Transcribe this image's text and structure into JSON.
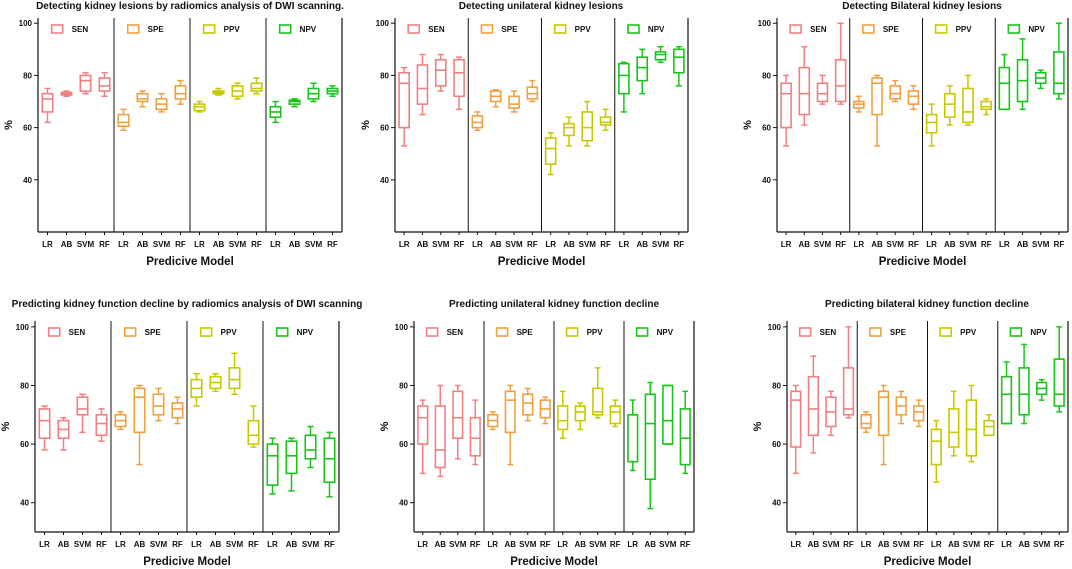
{
  "colors": {
    "SEN": "#f08080",
    "SPE": "#f0a040",
    "PPV": "#c8c800",
    "NPV": "#19c419",
    "axis": "#111111"
  },
  "chart_data": [
    {
      "type": "boxplot",
      "title": "Detecting kidney lesions by radiomics analysis of DWI scanning.",
      "xlabel": "Predicive Model",
      "ylabel": "%",
      "ylim": [
        20,
        102
      ],
      "yticks": [
        40,
        60,
        80,
        100
      ],
      "models": [
        "LR",
        "AB",
        "SVM",
        "RF"
      ],
      "groups": [
        {
          "name": "SEN",
          "boxes": [
            [
              62,
              66,
              71,
              73,
              75
            ],
            [
              72,
              72.5,
              73,
              73.5,
              74
            ],
            [
              73,
              74,
              78,
              80,
              81
            ],
            [
              72,
              74,
              76,
              79,
              81
            ]
          ]
        },
        {
          "name": "SPE",
          "boxes": [
            [
              59,
              60.5,
              62,
              65,
              67
            ],
            [
              68,
              70,
              71,
              73,
              74
            ],
            [
              66,
              67,
              69,
              71,
              73
            ],
            [
              69,
              71,
              73,
              76,
              78
            ]
          ]
        },
        {
          "name": "PPV",
          "boxes": [
            [
              66,
              66.5,
              68,
              69,
              70
            ],
            [
              72.5,
              73,
              73.5,
              74,
              75
            ],
            [
              71,
              72,
              74,
              76,
              77
            ],
            [
              73,
              74,
              75,
              77,
              79
            ]
          ]
        },
        {
          "name": "NPV",
          "boxes": [
            [
              62,
              64,
              66,
              68,
              70
            ],
            [
              68,
              69,
              70,
              70.5,
              71
            ],
            [
              70,
              71,
              73,
              75,
              77
            ],
            [
              72,
              73,
              74,
              75,
              76
            ]
          ]
        }
      ]
    },
    {
      "type": "boxplot",
      "title": "Detecting  unilateral kidney lesions",
      "xlabel": "Predicive Model",
      "ylabel": "%",
      "ylim": [
        20,
        102
      ],
      "yticks": [
        40,
        60,
        80,
        100
      ],
      "models": [
        "LR",
        "AB",
        "SVM",
        "RF"
      ],
      "groups": [
        {
          "name": "SEN",
          "boxes": [
            [
              53,
              60,
              77,
              81,
              83
            ],
            [
              65,
              69,
              75,
              84,
              88
            ],
            [
              74,
              76,
              82,
              86,
              88
            ],
            [
              67,
              72,
              81,
              86,
              87
            ]
          ]
        },
        {
          "name": "SPE",
          "boxes": [
            [
              59,
              60,
              62,
              64.5,
              66
            ],
            [
              68,
              70,
              72,
              74,
              74.5
            ],
            [
              66,
              67.5,
              69,
              72,
              74
            ],
            [
              70,
              71,
              73,
              75.5,
              78
            ]
          ]
        },
        {
          "name": "PPV",
          "boxes": [
            [
              42,
              46,
              52,
              56,
              58
            ],
            [
              53,
              57,
              60,
              61.5,
              64
            ],
            [
              53,
              55,
              60,
              66,
              70
            ],
            [
              59,
              61,
              62,
              64,
              67
            ]
          ]
        },
        {
          "name": "NPV",
          "boxes": [
            [
              66,
              73,
              80,
              84.5,
              85
            ],
            [
              73,
              78,
              83,
              87,
              90
            ],
            [
              85,
              86,
              88,
              89,
              91
            ],
            [
              76,
              81,
              87,
              90,
              91
            ]
          ]
        }
      ]
    },
    {
      "type": "boxplot",
      "title": "Detecting Bilateral kidney lesions",
      "xlabel": "Predicive Model",
      "ylabel": "%",
      "ylim": [
        20,
        102
      ],
      "yticks": [
        40,
        60,
        80,
        100
      ],
      "models": [
        "LR",
        "AB",
        "SVM",
        "RF"
      ],
      "groups": [
        {
          "name": "SEN",
          "boxes": [
            [
              53,
              60,
              73,
              77,
              80
            ],
            [
              61,
              65,
              73,
              83,
              91
            ],
            [
              69,
              70,
              73,
              77,
              80
            ],
            [
              69,
              70,
              76,
              86,
              100
            ]
          ]
        },
        {
          "name": "SPE",
          "boxes": [
            [
              66,
              67.5,
              69,
              70,
              72
            ],
            [
              53,
              65,
              77,
              79,
              80
            ],
            [
              70,
              71,
              73,
              76,
              78
            ],
            [
              67,
              69,
              72,
              74,
              76
            ]
          ]
        },
        {
          "name": "PPV",
          "boxes": [
            [
              53,
              58,
              62,
              65,
              69
            ],
            [
              61,
              64,
              69,
              73,
              76
            ],
            [
              61,
              62,
              66,
              75,
              80
            ],
            [
              65,
              67,
              68,
              70,
              71
            ]
          ]
        },
        {
          "name": "NPV",
          "boxes": [
            [
              67,
              67,
              77,
              83,
              88
            ],
            [
              67,
              70,
              78,
              86,
              94
            ],
            [
              75,
              77,
              79,
              81,
              82
            ],
            [
              71,
              73,
              77,
              89,
              100
            ]
          ]
        }
      ]
    },
    {
      "type": "boxplot",
      "title": "Predicting kidney function decline by radiomics analysis of DWI scanning",
      "xlabel": "Predicive Model",
      "ylabel": "%",
      "ylim": [
        30,
        102
      ],
      "yticks": [
        40,
        60,
        80,
        100
      ],
      "models": [
        "LR",
        "AB",
        "SVM",
        "RF"
      ],
      "groups": [
        {
          "name": "SEN",
          "boxes": [
            [
              58,
              62,
              68,
              72,
              73
            ],
            [
              58,
              62,
              65,
              68,
              69
            ],
            [
              64,
              70,
              72,
              76,
              77
            ],
            [
              61,
              63,
              67,
              70,
              72
            ]
          ]
        },
        {
          "name": "SPE",
          "boxes": [
            [
              65,
              66,
              68,
              70,
              71
            ],
            [
              53,
              64,
              76,
              79,
              80
            ],
            [
              68,
              70,
              73,
              77,
              79
            ],
            [
              67,
              69,
              72,
              74,
              76
            ]
          ]
        },
        {
          "name": "PPV",
          "boxes": [
            [
              73,
              76,
              79,
              82,
              84
            ],
            [
              78,
              79,
              81,
              83,
              84
            ],
            [
              77,
              79,
              82,
              86,
              91
            ],
            [
              59,
              60,
              63,
              68,
              73
            ]
          ]
        },
        {
          "name": "NPV",
          "boxes": [
            [
              43,
              46,
              56,
              60,
              62
            ],
            [
              44,
              50,
              56,
              61,
              62
            ],
            [
              52,
              55,
              58,
              63,
              66
            ],
            [
              42,
              47,
              55,
              62,
              64
            ]
          ]
        }
      ]
    },
    {
      "type": "boxplot",
      "title": "Predicting unilateral kidney function decline",
      "xlabel": "Predicive Model",
      "ylabel": "%",
      "ylim": [
        30,
        102
      ],
      "yticks": [
        40,
        60,
        80,
        100
      ],
      "models": [
        "LR",
        "AB",
        "SVM",
        "RF"
      ],
      "groups": [
        {
          "name": "SEN",
          "boxes": [
            [
              50,
              60,
              69,
              73,
              75
            ],
            [
              49,
              52,
              58,
              73,
              80
            ],
            [
              55,
              62,
              69,
              78,
              80
            ],
            [
              53,
              56,
              62,
              69,
              75
            ]
          ]
        },
        {
          "name": "SPE",
          "boxes": [
            [
              65,
              66,
              68,
              70,
              71
            ],
            [
              53,
              64,
              75,
              78,
              80
            ],
            [
              68,
              70,
              74,
              77,
              79
            ],
            [
              67,
              69,
              72,
              75,
              76
            ]
          ]
        },
        {
          "name": "PPV",
          "boxes": [
            [
              62,
              65,
              68,
              73,
              78
            ],
            [
              65,
              68,
              71,
              73,
              74
            ],
            [
              69,
              70,
              71,
              79,
              86
            ],
            [
              66,
              67,
              71,
              73,
              75
            ]
          ]
        },
        {
          "name": "NPV",
          "boxes": [
            [
              51,
              54,
              70,
              70,
              75
            ],
            [
              38,
              48,
              67,
              77,
              81
            ],
            [
              60,
              60,
              68,
              80,
              80
            ],
            [
              50,
              53,
              62,
              72,
              78
            ]
          ]
        }
      ]
    },
    {
      "type": "boxplot",
      "title": "Predicting bilateral kidney function decline",
      "xlabel": "Predicive Model",
      "ylabel": "%",
      "ylim": [
        30,
        102
      ],
      "yticks": [
        40,
        60,
        80,
        100
      ],
      "models": [
        "LR",
        "AB",
        "SVM",
        "RF"
      ],
      "groups": [
        {
          "name": "SEN",
          "boxes": [
            [
              50,
              59,
              75,
              78,
              80
            ],
            [
              57,
              63,
              72,
              83,
              90
            ],
            [
              63,
              66,
              71,
              76,
              78
            ],
            [
              69,
              70,
              72,
              86,
              100
            ]
          ]
        },
        {
          "name": "SPE",
          "boxes": [
            [
              64,
              65.5,
              67,
              70,
              71
            ],
            [
              53,
              63,
              76,
              78,
              80
            ],
            [
              67,
              70,
              73,
              76,
              78
            ],
            [
              66,
              68,
              71,
              73,
              75
            ]
          ]
        },
        {
          "name": "PPV",
          "boxes": [
            [
              47,
              53,
              61,
              65,
              68
            ],
            [
              56,
              59,
              64,
              72,
              78
            ],
            [
              54,
              56,
              65,
              75,
              80
            ],
            [
              63,
              63,
              66,
              68,
              70
            ]
          ]
        },
        {
          "name": "NPV",
          "boxes": [
            [
              67,
              67,
              77,
              83,
              88
            ],
            [
              67,
              70,
              77,
              86,
              94
            ],
            [
              75,
              77,
              79,
              81,
              82
            ],
            [
              71,
              73,
              77,
              89,
              100
            ]
          ]
        }
      ]
    }
  ]
}
